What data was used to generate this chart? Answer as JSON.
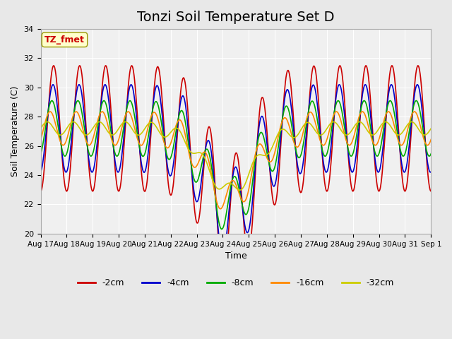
{
  "title": "Tonzi Soil Temperature Set D",
  "xlabel": "Time",
  "ylabel": "Soil Temperature (C)",
  "ylim": [
    20,
    34
  ],
  "yticks": [
    20,
    22,
    24,
    26,
    28,
    30,
    32,
    34
  ],
  "x_labels": [
    "Aug 17",
    "Aug 18",
    "Aug 19",
    "Aug 20",
    "Aug 21",
    "Aug 22",
    "Aug 23",
    "Aug 24",
    "Aug 25",
    "Aug 26",
    "Aug 27",
    "Aug 28",
    "Aug 29",
    "Aug 30",
    "Aug 31",
    "Sep 1"
  ],
  "line_colors": [
    "#cc0000",
    "#0000cc",
    "#00aa00",
    "#ff8800",
    "#cccc00"
  ],
  "line_labels": [
    "-2cm",
    "-4cm",
    "-8cm",
    "-16cm",
    "-32cm"
  ],
  "annotation_text": "TZ_fmet",
  "annotation_color": "#cc0000",
  "annotation_bg": "#ffffcc",
  "bg_color": "#e8e8e8",
  "plot_bg": "#f0f0f0",
  "title_fontsize": 14
}
